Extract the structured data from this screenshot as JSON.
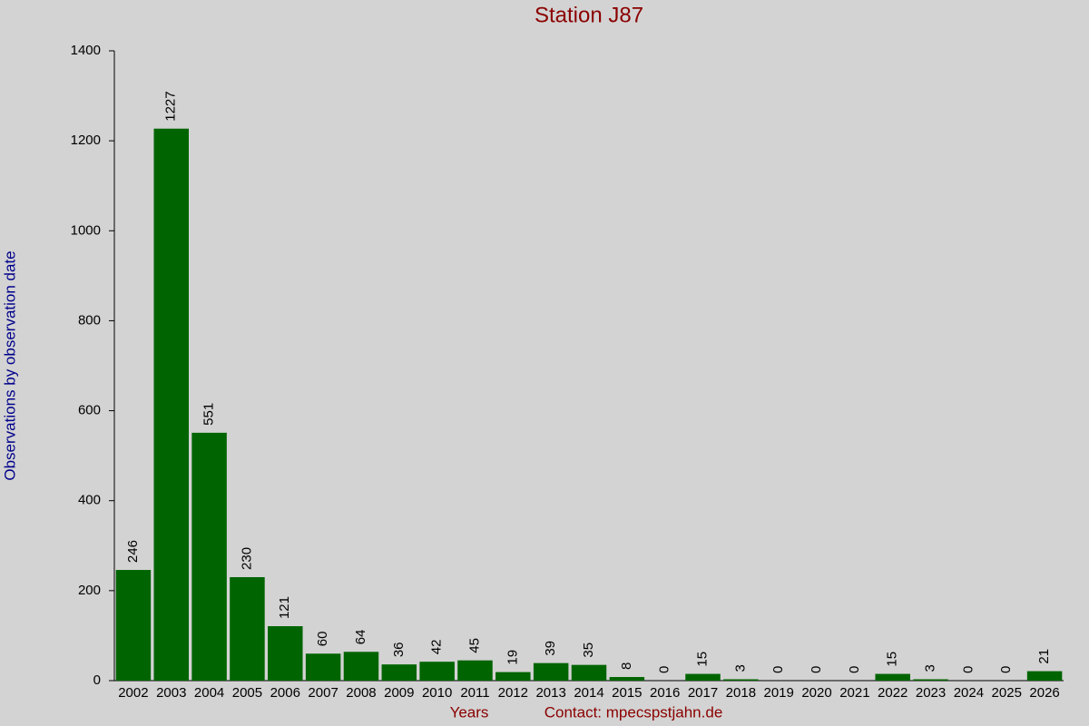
{
  "chart_data": {
    "type": "bar",
    "title": "Station J87",
    "ylabel": "Observations by observation date",
    "xlabel": "Years",
    "contact": "Contact: mpecspstjahn.de",
    "categories": [
      "2002",
      "2003",
      "2004",
      "2005",
      "2006",
      "2007",
      "2008",
      "2009",
      "2010",
      "2011",
      "2012",
      "2013",
      "2014",
      "2015",
      "2016",
      "2017",
      "2018",
      "2019",
      "2020",
      "2021",
      "2022",
      "2023",
      "2024",
      "2025",
      "2026"
    ],
    "values": [
      246,
      1227,
      551,
      230,
      121,
      60,
      64,
      36,
      42,
      45,
      19,
      39,
      35,
      8,
      0,
      15,
      3,
      0,
      0,
      0,
      15,
      3,
      0,
      0,
      21
    ],
    "color": "#006400",
    "ylim": [
      0,
      1400
    ],
    "yticks": [
      0,
      200,
      400,
      600,
      800,
      1000,
      1200,
      1400
    ]
  }
}
